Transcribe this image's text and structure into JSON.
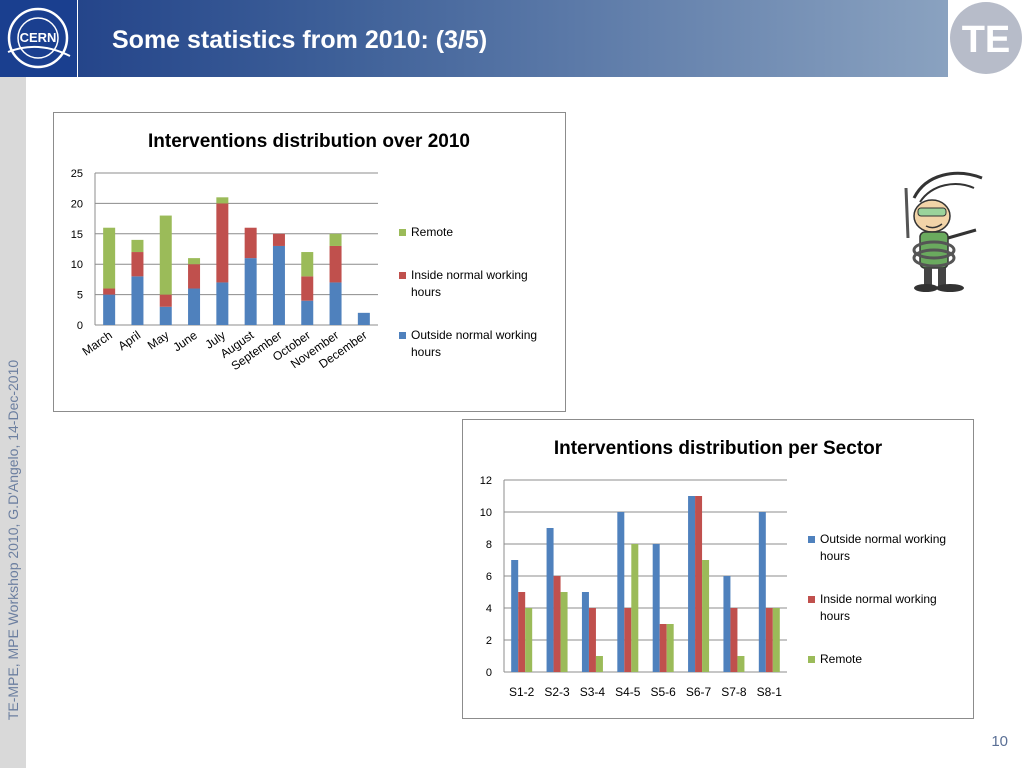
{
  "slide": {
    "title": "Some statistics from 2010: (3/5)",
    "side_text": "TE-MPE, MPE Workshop 2010, G.D'Angelo, 14-Dec-2010",
    "page_number": "10",
    "left_logo_text": "CERN",
    "right_logo_text": "TE"
  },
  "colors": {
    "blue": "#4f81bd",
    "red": "#c0504d",
    "green": "#9bbb59",
    "header_dark": "#1d3d86",
    "header_light": "#8aa2c0"
  },
  "chart_data": [
    {
      "type": "bar",
      "stacked": true,
      "title": "Interventions distribution over 2010",
      "categories": [
        "March",
        "April",
        "May",
        "June",
        "July",
        "August",
        "September",
        "October",
        "November",
        "December"
      ],
      "series": [
        {
          "name": "Outside normal working hours",
          "color": "#4f81bd",
          "values": [
            5,
            8,
            3,
            6,
            7,
            11,
            13,
            4,
            7,
            2
          ]
        },
        {
          "name": "Inside normal working hours",
          "color": "#c0504d",
          "values": [
            1,
            4,
            2,
            4,
            13,
            5,
            2,
            4,
            6,
            0
          ]
        },
        {
          "name": "Remote",
          "color": "#9bbb59",
          "values": [
            10,
            2,
            13,
            1,
            1,
            0,
            0,
            4,
            2,
            0
          ]
        }
      ],
      "legend_order": [
        "Remote",
        "Inside normal working hours",
        "Outside normal working hours"
      ],
      "ylim": [
        0,
        25
      ],
      "yticks": [
        0,
        5,
        10,
        15,
        20,
        25
      ],
      "legend_position": "right",
      "grid": true
    },
    {
      "type": "bar",
      "stacked": false,
      "title": "Interventions distribution per Sector",
      "categories": [
        "S1-2",
        "S2-3",
        "S3-4",
        "S4-5",
        "S5-6",
        "S6-7",
        "S7-8",
        "S8-1"
      ],
      "series": [
        {
          "name": "Outside normal working hours",
          "color": "#4f81bd",
          "values": [
            7,
            9,
            5,
            10,
            8,
            11,
            6,
            10
          ]
        },
        {
          "name": "Inside normal working hours",
          "color": "#c0504d",
          "values": [
            5,
            6,
            4,
            4,
            3,
            11,
            4,
            4
          ]
        },
        {
          "name": "Remote",
          "color": "#9bbb59",
          "values": [
            4,
            5,
            1,
            8,
            3,
            7,
            1,
            4
          ]
        }
      ],
      "legend_order": [
        "Outside normal working hours",
        "Inside normal working hours",
        "Remote"
      ],
      "ylim": [
        0,
        12
      ],
      "yticks": [
        0,
        2,
        4,
        6,
        8,
        10,
        12
      ],
      "legend_position": "right",
      "grid": true
    }
  ]
}
